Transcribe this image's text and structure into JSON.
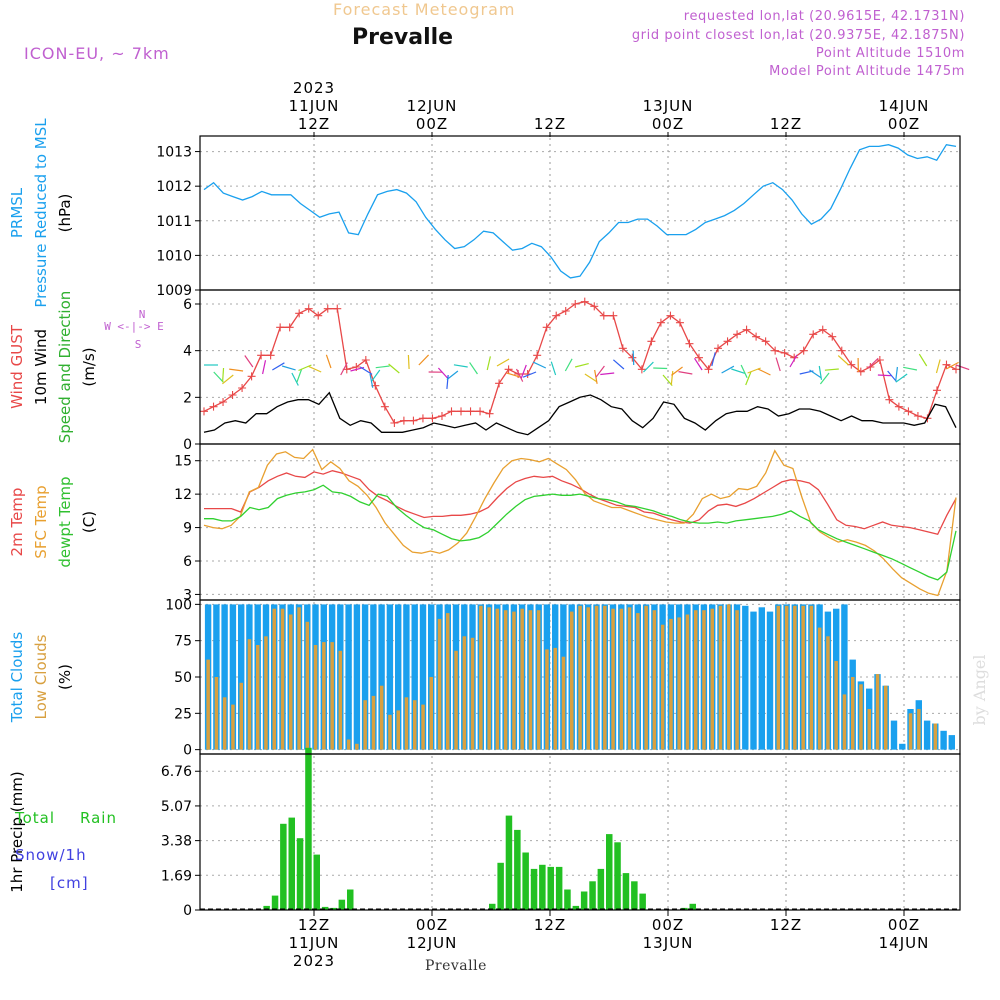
{
  "header": {
    "title": "Forecast Meteogram",
    "location": "Prevalle",
    "model": "ICON-EU, ~ 7km",
    "requested": "requested lon,lat (20.9615E, 42.1731N)",
    "gridpoint": "grid point closest lon,lat (20.9375E, 42.1875N)",
    "point_alt": "Point Altitude 1510m",
    "model_alt": "Model Point Altitude 1475m",
    "footer": "Prevalle",
    "watermark": "by Angel",
    "colors": {
      "title": "#f0c890",
      "meta": "#c060d0"
    }
  },
  "chart_data": [
    {
      "type": "line",
      "panel": "pressure",
      "ylabel": [
        "PRMSL",
        "Pressure Reduced to MSL",
        "(hPa)"
      ],
      "ylim": [
        1009,
        1013.45
      ],
      "yticks": [
        1009,
        1010,
        1011,
        1012,
        1013
      ],
      "series": [
        {
          "name": "PRMSL",
          "color": "#1aa0ee",
          "values": [
            1011.9,
            1012.1,
            1011.8,
            1011.7,
            1011.6,
            1011.7,
            1011.85,
            1011.75,
            1011.75,
            1011.75,
            1011.5,
            1011.3,
            1011.1,
            1011.2,
            1011.25,
            1010.65,
            1010.6,
            1011.2,
            1011.75,
            1011.85,
            1011.9,
            1011.8,
            1011.55,
            1011.1,
            1010.75,
            1010.45,
            1010.2,
            1010.25,
            1010.45,
            1010.7,
            1010.65,
            1010.4,
            1010.15,
            1010.2,
            1010.35,
            1010.25,
            1009.95,
            1009.55,
            1009.35,
            1009.4,
            1009.8,
            1010.4,
            1010.65,
            1010.95,
            1010.95,
            1011.05,
            1011.05,
            1010.85,
            1010.6,
            1010.6,
            1010.6,
            1010.75,
            1010.95,
            1011.05,
            1011.15,
            1011.3,
            1011.5,
            1011.75,
            1012.0,
            1012.1,
            1011.9,
            1011.6,
            1011.2,
            1010.9,
            1011.05,
            1011.35,
            1011.9,
            1012.5,
            1013.05,
            1013.15,
            1013.15,
            1013.2,
            1013.1,
            1012.9,
            1012.8,
            1012.85,
            1012.75,
            1013.2,
            1013.15
          ]
        }
      ]
    },
    {
      "type": "line",
      "panel": "wind",
      "ylabel": [
        "Wind GUST",
        "10m Wind",
        "Speed and Direction",
        "(m/s)"
      ],
      "compass": [
        "N",
        "W <-|-> E",
        "S"
      ],
      "ylim": [
        0,
        6.6
      ],
      "yticks": [
        0,
        2,
        4,
        6
      ],
      "series": [
        {
          "name": "Wind GUST",
          "color": "#e84848",
          "values": [
            1.4,
            1.6,
            1.8,
            2.1,
            2.4,
            2.9,
            3.8,
            3.8,
            5.0,
            5.0,
            5.6,
            5.8,
            5.5,
            5.8,
            5.8,
            3.2,
            3.3,
            3.6,
            2.5,
            1.6,
            0.9,
            1.0,
            1.0,
            1.1,
            1.1,
            1.2,
            1.4,
            1.4,
            1.4,
            1.4,
            1.3,
            2.6,
            3.2,
            3.0,
            3.0,
            3.8,
            5.0,
            5.5,
            5.7,
            6.0,
            6.1,
            5.9,
            5.5,
            5.5,
            4.1,
            3.7,
            3.2,
            4.4,
            5.2,
            5.5,
            5.2,
            4.3,
            3.7,
            3.2,
            4.1,
            4.4,
            4.7,
            4.9,
            4.6,
            4.4,
            4.0,
            3.9,
            3.7,
            4.0,
            4.7,
            4.9,
            4.6,
            4.0,
            3.4,
            3.1,
            3.3,
            3.6,
            1.9,
            1.6,
            1.4,
            1.2,
            1.1,
            2.3,
            3.4,
            3.2
          ]
        },
        {
          "name": "10m Wind",
          "color": "#000000",
          "values": [
            0.5,
            0.6,
            0.9,
            1.0,
            0.9,
            1.3,
            1.3,
            1.6,
            1.8,
            1.9,
            1.9,
            1.7,
            2.2,
            1.1,
            0.8,
            1.0,
            0.9,
            0.5,
            0.5,
            0.5,
            0.6,
            0.7,
            0.9,
            0.8,
            0.7,
            0.8,
            0.9,
            0.6,
            0.9,
            0.7,
            0.5,
            0.4,
            0.7,
            1.0,
            1.6,
            1.8,
            2.0,
            2.1,
            1.9,
            1.6,
            1.5,
            1.0,
            0.7,
            1.1,
            1.8,
            1.7,
            1.1,
            0.9,
            0.6,
            1.0,
            1.3,
            1.4,
            1.4,
            1.6,
            1.5,
            1.2,
            1.3,
            1.5,
            1.5,
            1.4,
            1.2,
            1.0,
            1.2,
            1.0,
            1.0,
            0.9,
            0.9,
            0.9,
            0.8,
            0.9,
            1.7,
            1.6,
            0.7
          ]
        }
      ]
    },
    {
      "type": "line",
      "panel": "temperature",
      "ylabel": [
        "2m Temp",
        "SFC Temp",
        "dewpt Temp",
        "(C)"
      ],
      "ylim": [
        2.5,
        16.5
      ],
      "yticks": [
        3,
        6,
        9,
        12,
        15
      ],
      "series": [
        {
          "name": "2m Temp",
          "color": "#e84848",
          "values": [
            10.7,
            10.7,
            10.7,
            10.7,
            10.4,
            12.2,
            12.6,
            13.2,
            13.6,
            13.9,
            13.6,
            13.5,
            14.0,
            13.8,
            14.1,
            13.9,
            13.6,
            13.3,
            12.4,
            11.8,
            11.4,
            10.9,
            10.5,
            10.2,
            9.9,
            10.0,
            10.0,
            10.1,
            10.1,
            10.2,
            10.4,
            10.8,
            11.7,
            12.5,
            13.1,
            13.4,
            13.6,
            13.5,
            13.6,
            13.2,
            12.9,
            12.5,
            12.0,
            11.6,
            11.3,
            11.0,
            10.9,
            10.8,
            10.4,
            10.3,
            10.0,
            9.7,
            9.5,
            9.4,
            9.7,
            10.5,
            11.0,
            11.1,
            10.9,
            11.2,
            11.6,
            12.1,
            12.6,
            13.1,
            13.3,
            13.2,
            13.0,
            12.4,
            11.1,
            9.7,
            9.2,
            9.1,
            8.9,
            9.2,
            9.5,
            9.2,
            9.1,
            9.0,
            8.8,
            8.6,
            8.4,
            10.1,
            11.6
          ]
        },
        {
          "name": "SFC Temp",
          "color": "#e8a030",
          "values": [
            9.2,
            9.0,
            8.9,
            9.2,
            10.0,
            12.2,
            12.6,
            14.6,
            15.6,
            15.8,
            15.3,
            15.2,
            16.0,
            14.2,
            14.9,
            14.3,
            13.2,
            12.7,
            11.9,
            10.8,
            9.4,
            8.4,
            7.4,
            6.8,
            6.7,
            6.9,
            6.7,
            7.0,
            7.6,
            8.5,
            10.0,
            11.6,
            13.0,
            14.3,
            15.0,
            15.2,
            15.1,
            14.9,
            15.2,
            14.7,
            14.2,
            13.3,
            12.1,
            11.4,
            11.1,
            10.8,
            10.8,
            10.5,
            10.2,
            9.9,
            9.7,
            9.5,
            9.4,
            9.4,
            10.2,
            11.6,
            12.0,
            11.6,
            11.8,
            12.5,
            12.4,
            12.7,
            13.9,
            15.9,
            14.6,
            14.3,
            11.7,
            9.4,
            8.6,
            8.1,
            7.7,
            7.9,
            7.7,
            7.4,
            6.9,
            6.2,
            5.3,
            4.5,
            4.0,
            3.5,
            3.1,
            2.9,
            5.1,
            11.7
          ]
        },
        {
          "name": "dewpt Temp",
          "color": "#30d030",
          "values": [
            9.8,
            9.8,
            9.6,
            9.6,
            10.0,
            10.8,
            10.6,
            10.8,
            11.6,
            11.9,
            12.1,
            12.2,
            12.4,
            12.8,
            12.2,
            12.1,
            11.8,
            11.3,
            11.0,
            12.0,
            11.8,
            10.8,
            10.1,
            9.5,
            9.0,
            8.8,
            8.4,
            8.0,
            7.8,
            7.9,
            8.1,
            8.6,
            9.4,
            10.2,
            10.9,
            11.5,
            11.8,
            11.9,
            12.0,
            11.9,
            11.9,
            12.0,
            11.8,
            11.6,
            11.5,
            11.3,
            11.0,
            10.9,
            10.7,
            10.5,
            10.2,
            10.0,
            9.7,
            9.5,
            9.4,
            9.4,
            9.5,
            9.4,
            9.6,
            9.7,
            9.8,
            9.9,
            10.0,
            10.2,
            10.5,
            10.0,
            9.6,
            8.8,
            8.4,
            8.0,
            7.7,
            7.4,
            7.1,
            6.8,
            6.5,
            6.2,
            5.8,
            5.4,
            5.0,
            4.6,
            4.3,
            5.0,
            8.7
          ]
        }
      ]
    },
    {
      "type": "bar",
      "panel": "clouds",
      "ylabel": [
        "Total Clouds",
        "Low Clouds",
        "(%)"
      ],
      "ylim": [
        -3,
        103
      ],
      "yticks": [
        0,
        25,
        50,
        75,
        100
      ],
      "series": [
        {
          "name": "Total Clouds",
          "color": "#1aa0ee",
          "values": [
            100,
            100,
            100,
            100,
            100,
            100,
            100,
            100,
            100,
            100,
            100,
            100,
            100,
            100,
            100,
            100,
            100,
            100,
            100,
            100,
            100,
            100,
            100,
            100,
            100,
            100,
            100,
            100,
            100,
            100,
            100,
            100,
            100,
            100,
            100,
            100,
            100,
            100,
            100,
            100,
            100,
            100,
            100,
            100,
            100,
            100,
            100,
            100,
            100,
            100,
            100,
            100,
            100,
            100,
            100,
            100,
            100,
            100,
            100,
            100,
            100,
            100,
            100,
            100,
            100,
            99,
            95,
            98,
            95,
            100,
            100,
            100,
            100,
            100,
            100,
            95,
            97,
            100,
            62,
            47,
            42,
            52,
            44,
            20,
            4,
            28,
            34,
            20,
            18,
            13,
            10
          ]
        },
        {
          "name": "Low Clouds",
          "color": "#d8a040",
          "values": [
            62,
            50,
            36,
            31,
            46,
            76,
            72,
            78,
            97,
            97,
            93,
            98,
            88,
            72,
            74,
            74,
            68,
            7,
            4,
            34,
            37,
            44,
            24,
            27,
            36,
            34,
            31,
            50,
            90,
            94,
            68,
            78,
            77,
            99,
            98,
            97,
            96,
            95,
            97,
            96,
            96,
            69,
            70,
            64,
            95,
            99,
            98,
            99,
            99,
            97,
            97,
            98,
            94,
            99,
            96,
            86,
            90,
            91,
            93,
            96,
            96,
            97,
            99,
            100,
            96,
            0,
            0,
            0,
            0,
            99,
            99,
            99,
            99,
            99,
            84,
            78,
            61,
            38,
            50,
            45,
            28,
            52,
            44,
            0,
            0,
            25,
            28,
            0,
            18,
            0,
            0
          ]
        }
      ]
    },
    {
      "type": "bar",
      "panel": "precip",
      "ylabel": [
        "1hr Precip (mm)"
      ],
      "legend": [
        "Total",
        "Rain",
        "Snow/1h",
        "[cm]"
      ],
      "ylim": [
        0,
        7.6
      ],
      "yticks": [
        0,
        1.69,
        3.38,
        5.07,
        6.76
      ],
      "series": [
        {
          "name": "Total Rain",
          "color": "#22c022",
          "values": [
            0,
            0,
            0,
            0,
            0,
            0,
            0,
            0.2,
            0.7,
            4.2,
            4.5,
            3.5,
            7.9,
            2.7,
            0.15,
            0.1,
            0.5,
            1.0,
            0,
            0,
            0,
            0,
            0,
            0,
            0,
            0,
            0,
            0,
            0,
            0,
            0,
            0,
            0,
            0,
            0.3,
            2.3,
            4.6,
            3.9,
            2.8,
            2.0,
            2.2,
            2.1,
            2.1,
            1.0,
            0.2,
            0.9,
            1.4,
            2.0,
            3.7,
            3.3,
            1.8,
            1.4,
            0.8,
            0,
            0,
            0,
            0,
            0.1,
            0.3,
            0,
            0,
            0,
            0,
            0,
            0,
            0,
            0,
            0,
            0,
            0,
            0,
            0,
            0,
            0,
            0,
            0,
            0,
            0,
            0,
            0,
            0,
            0,
            0,
            0,
            0,
            0,
            0,
            0,
            0,
            0
          ]
        }
      ]
    }
  ],
  "time_axis": {
    "top": [
      {
        "line1": "2023",
        "line2": "11JUN",
        "line3": "12Z"
      },
      {
        "line1": "",
        "line2": "12JUN",
        "line3": "00Z"
      },
      {
        "line1": "",
        "line2": "",
        "line3": "12Z"
      },
      {
        "line1": "",
        "line2": "13JUN",
        "line3": "00Z"
      },
      {
        "line1": "",
        "line2": "",
        "line3": "12Z"
      },
      {
        "line1": "",
        "line2": "14JUN",
        "line3": "00Z"
      }
    ],
    "bottom": [
      {
        "line1": "12Z",
        "line2": "11JUN",
        "line3": "2023"
      },
      {
        "line1": "00Z",
        "line2": "12JUN",
        "line3": ""
      },
      {
        "line1": "12Z",
        "line2": "",
        "line3": ""
      },
      {
        "line1": "00Z",
        "line2": "13JUN",
        "line3": ""
      },
      {
        "line1": "12Z",
        "line2": "",
        "line3": ""
      },
      {
        "line1": "00Z",
        "line2": "14JUN",
        "line3": ""
      }
    ]
  }
}
